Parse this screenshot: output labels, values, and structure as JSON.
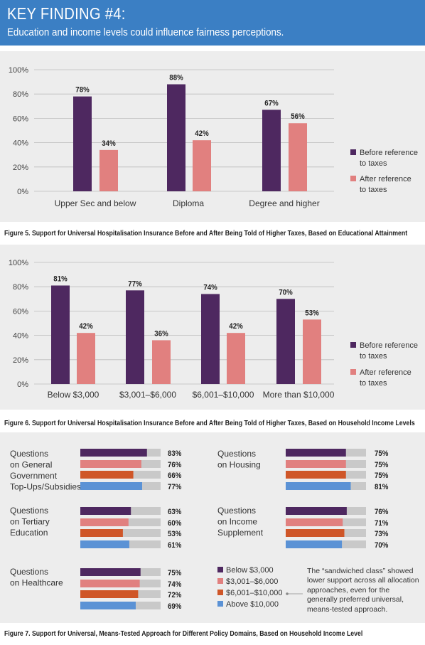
{
  "header": {
    "title": "KEY FINDING #4:",
    "subtitle": "Education and income levels could influence fairness perceptions."
  },
  "colors": {
    "header_bg": "#3b7fc4",
    "before": "#4e2860",
    "after": "#e1807f",
    "mid": "#cf5628",
    "above": "#5b92d5",
    "track": "#c9c9c9",
    "panel_bg": "#ededed"
  },
  "chart_data": [
    {
      "type": "bar",
      "title": "Figure 5. Support for Universal Hospitalisation Insurance Before and After Being Told of Higher Taxes, Based on Educational Attainment",
      "categories": [
        "Upper Sec and below",
        "Diploma",
        "Degree and higher"
      ],
      "series": [
        {
          "name": "Before reference to taxes",
          "values": [
            78,
            88,
            67
          ],
          "labels": [
            "78%",
            "88%",
            "67%"
          ]
        },
        {
          "name": "After reference to taxes",
          "values": [
            34,
            42,
            56
          ],
          "labels": [
            "34%",
            "42%",
            "56%"
          ]
        }
      ],
      "y_ticks": [
        "100%",
        "80%",
        "60%",
        "40%",
        "20%",
        "0%"
      ],
      "ylim": [
        0,
        100
      ],
      "legend": [
        [
          "Before reference",
          "to taxes"
        ],
        [
          "After reference",
          "to taxes"
        ]
      ],
      "legend_position": "right",
      "grid": true
    },
    {
      "type": "bar",
      "title": "Figure 6. Support for Universal Hospitalisation Insurance Before and After Being Told of Higher Taxes, Based on Household Income Levels",
      "categories": [
        "Below $3,000",
        "$3,001–$6,000",
        "$6,001–$10,000",
        "More than $10,000"
      ],
      "series": [
        {
          "name": "Before reference to taxes",
          "values": [
            81,
            77,
            74,
            70
          ],
          "labels": [
            "81%",
            "77%",
            "74%",
            "70%"
          ]
        },
        {
          "name": "After reference to taxes",
          "values": [
            42,
            36,
            42,
            53
          ],
          "labels": [
            "42%",
            "36%",
            "42%",
            "53%"
          ]
        }
      ],
      "y_ticks": [
        "100%",
        "80%",
        "60%",
        "40%",
        "20%",
        "0%"
      ],
      "ylim": [
        0,
        100
      ],
      "legend": [
        [
          "Before reference",
          "to taxes"
        ],
        [
          "After reference",
          "to taxes"
        ]
      ],
      "legend_position": "right",
      "grid": true
    },
    {
      "type": "bar",
      "orientation": "horizontal",
      "title": "Figure 7. Support for Universal, Means-Tested Approach for Different Policy Domains, Based on Household Income Level",
      "xlim": [
        0,
        100
      ],
      "series_names": [
        "Below $3,000",
        "$3,001–$6,000",
        "$6,001–$10,000",
        "Above $10,000"
      ],
      "groups": [
        {
          "label": [
            "Questions",
            "on General",
            "Government",
            "Top-Ups/Subsidies"
          ],
          "values": [
            83,
            76,
            66,
            77
          ],
          "labels": [
            "83%",
            "76%",
            "66%",
            "77%"
          ]
        },
        {
          "label": [
            "Questions",
            "on Housing"
          ],
          "values": [
            75,
            75,
            75,
            81
          ],
          "labels": [
            "75%",
            "75%",
            "75%",
            "81%"
          ]
        },
        {
          "label": [
            "Questions",
            "on Tertiary",
            "Education"
          ],
          "values": [
            63,
            60,
            53,
            61
          ],
          "labels": [
            "63%",
            "60%",
            "53%",
            "61%"
          ]
        },
        {
          "label": [
            "Questions",
            "on Income",
            "Supplement"
          ],
          "values": [
            76,
            71,
            73,
            70
          ],
          "labels": [
            "76%",
            "71%",
            "73%",
            "70%"
          ]
        },
        {
          "label": [
            "Questions",
            "on Healthcare"
          ],
          "values": [
            75,
            74,
            72,
            69
          ],
          "labels": [
            "75%",
            "74%",
            "72%",
            "69%"
          ]
        }
      ],
      "legend": [
        "Below $3,000",
        "$3,001–$6,000",
        "$6,001–$10,000",
        "Above $10,000"
      ],
      "annotation": "The “sandwiched class” showed lower support across all allocation approaches, even for the generally preferred universal, means-tested approach."
    }
  ]
}
